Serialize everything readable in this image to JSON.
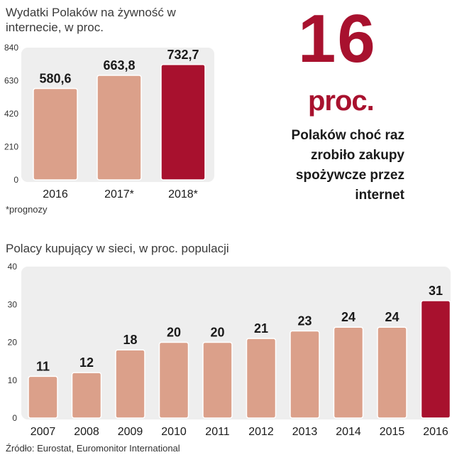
{
  "chart_data": [
    {
      "type": "bar",
      "title": "Wydatki Polaków na żywność w internecie, w proc.",
      "categories": [
        "2016",
        "2017*",
        "2018*"
      ],
      "values": [
        580.6,
        663.8,
        732.7
      ],
      "value_labels": [
        "580,6",
        "663,8",
        "732,7"
      ],
      "yticks": [
        "840",
        "630",
        "420",
        "210",
        "0"
      ],
      "ylim": [
        0,
        840
      ],
      "highlight_index": 2,
      "grid": false,
      "note": "*prognozy"
    },
    {
      "type": "bar",
      "title": "Polacy kupujący w sieci, w proc. populacji",
      "categories": [
        "2007",
        "2008",
        "2009",
        "2010",
        "2011",
        "2012",
        "2013",
        "2014",
        "2015",
        "2016"
      ],
      "values": [
        11,
        12,
        18,
        20,
        20,
        21,
        23,
        24,
        24,
        31
      ],
      "value_labels": [
        "11",
        "12",
        "18",
        "20",
        "20",
        "21",
        "23",
        "24",
        "24",
        "31"
      ],
      "yticks": [
        "40",
        "30",
        "20",
        "10",
        "0"
      ],
      "ylim": [
        0,
        40
      ],
      "highlight_index": 9,
      "grid": false
    }
  ],
  "highlight": {
    "number": "16",
    "unit": "proc.",
    "description": "Polaków choć raz zrobiło zakupy spożywcze przez internet"
  },
  "source": "Źródło: Eurostat, Euromonitor International",
  "colors": {
    "bar": "#dba08a",
    "highlight_bar": "#a8112e",
    "panel": "#eeeeee",
    "accent": "#a8112e"
  }
}
